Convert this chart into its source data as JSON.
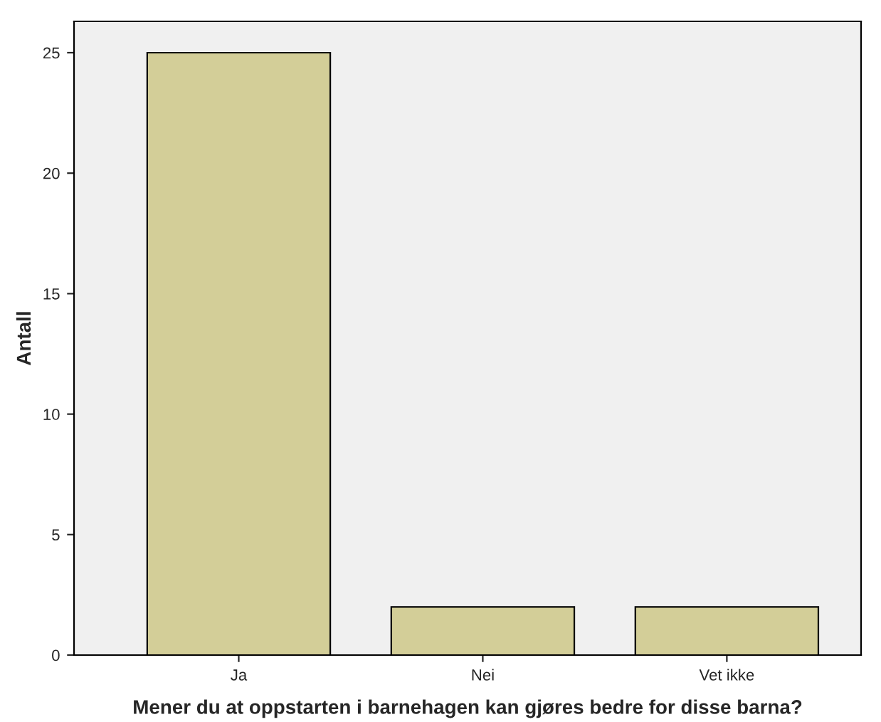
{
  "chart_data": {
    "type": "bar",
    "xlabel": "Mener du at oppstarten i barnehagen kan gjøres bedre for disse barna?",
    "ylabel": "Antall",
    "categories": [
      "Ja",
      "Nei",
      "Vet ikke"
    ],
    "values": [
      25,
      2,
      2
    ],
    "color": "#d3ce98",
    "ylim": [
      0,
      26.3
    ],
    "yticks": [
      0,
      5,
      10,
      15,
      20,
      25
    ],
    "grid": false,
    "legend": false
  }
}
